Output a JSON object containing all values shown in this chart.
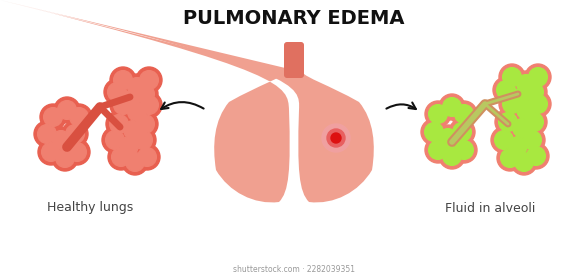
{
  "title": "PULMONARY EDEMA",
  "label_left": "Healthy lungs",
  "label_right": "Fluid in alveoli",
  "watermark": "shutterstock.com · 2282039351",
  "bg_color": "#ffffff",
  "lung_color": "#f0a090",
  "trachea_color": "#e07060",
  "alveoli_healthy_fill": "#f08070",
  "alveoli_healthy_edge": "#e86050",
  "alveoli_healthy_bg": "#f5b0a0",
  "alveoli_fluid_fill": "#a8e840",
  "alveoli_fluid_edge": "#f08070",
  "branch_color_healthy": "#d95040",
  "branch_color_fluid_outer": "#d09060",
  "branch_color_fluid_inner": "#b8c860",
  "spot_red": "#dd1111",
  "spot_ring1": "#e86060",
  "spot_ring2": "#f0a0a0",
  "arrow_color": "#111111",
  "title_color": "#111111"
}
